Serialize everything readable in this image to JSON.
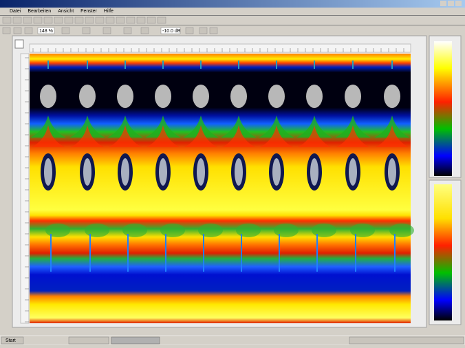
{
  "menu": [
    "Datei",
    "Bearbeiten",
    "Ansicht",
    "Fenster",
    "Hilfe"
  ],
  "toolbar": {
    "zoom": "148 %",
    "gain": "-10.0 dB"
  },
  "taskbar": {
    "start": "Start"
  }
}
